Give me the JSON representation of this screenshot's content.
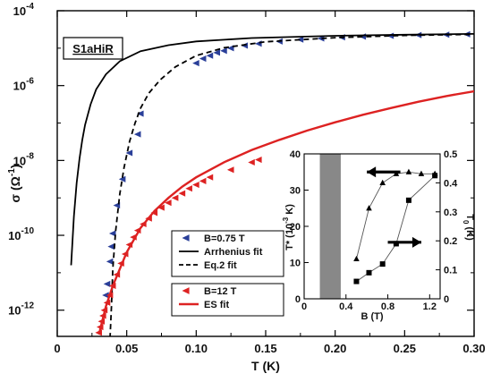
{
  "chart_data": {
    "type": "scatter",
    "sample_label": "S1aHiR",
    "xlabel": "T (K)",
    "ylabel": "σ (Ω",
    "ylabel_exp": "-1",
    "ylabel_close": ")",
    "x_scale": "linear",
    "y_scale": "log",
    "xlim": [
      0,
      0.3
    ],
    "ylim_exp": [
      -12.7,
      -4
    ],
    "x_ticks": [
      {
        "v": 0,
        "label": "0"
      },
      {
        "v": 0.05,
        "label": "0.05"
      },
      {
        "v": 0.1,
        "label": "0.10"
      },
      {
        "v": 0.15,
        "label": "0.15"
      },
      {
        "v": 0.2,
        "label": "0.20"
      },
      {
        "v": 0.25,
        "label": "0.25"
      },
      {
        "v": 0.3,
        "label": "0.30"
      }
    ],
    "y_ticks": [
      {
        "exp": -4,
        "base": "10",
        "sup": "-4"
      },
      {
        "exp": -6,
        "base": "10",
        "sup": "-6"
      },
      {
        "exp": -8,
        "base": "10",
        "sup": "-8"
      },
      {
        "exp": -10,
        "base": "10",
        "sup": "-10"
      },
      {
        "exp": -12,
        "base": "10",
        "sup": "-12"
      }
    ],
    "series": [
      {
        "name": "B=0.75 T",
        "kind": "points",
        "color": "#2a3f99",
        "marker": "triangle-left",
        "points": [
          [
            0.035,
            -11.6
          ],
          [
            0.036,
            -11.3
          ],
          [
            0.038,
            -10.7
          ],
          [
            0.039,
            -10.3
          ],
          [
            0.04,
            -9.95
          ],
          [
            0.043,
            -9.2
          ],
          [
            0.047,
            -8.5
          ],
          [
            0.052,
            -7.8
          ],
          [
            0.058,
            -7.3
          ],
          [
            0.06,
            -6.75
          ],
          [
            0.1,
            -5.4
          ],
          [
            0.105,
            -5.28
          ],
          [
            0.11,
            -5.2
          ],
          [
            0.115,
            -5.12
          ],
          [
            0.12,
            -5.07
          ],
          [
            0.125,
            -5.0
          ],
          [
            0.135,
            -4.93
          ],
          [
            0.145,
            -4.88
          ],
          [
            0.16,
            -4.82
          ],
          [
            0.175,
            -4.77
          ],
          [
            0.19,
            -4.74
          ],
          [
            0.205,
            -4.71
          ],
          [
            0.22,
            -4.69
          ],
          [
            0.24,
            -4.67
          ],
          [
            0.26,
            -4.65
          ],
          [
            0.28,
            -4.64
          ],
          [
            0.295,
            -4.63
          ]
        ]
      },
      {
        "name": "Arrhenius fit",
        "kind": "line",
        "style": "solid",
        "color": "#000000",
        "points": [
          [
            0.01,
            -10.8
          ],
          [
            0.012,
            -9.5
          ],
          [
            0.014,
            -8.6
          ],
          [
            0.016,
            -7.95
          ],
          [
            0.018,
            -7.45
          ],
          [
            0.02,
            -7.05
          ],
          [
            0.024,
            -6.5
          ],
          [
            0.028,
            -6.1
          ],
          [
            0.035,
            -5.7
          ],
          [
            0.045,
            -5.35
          ],
          [
            0.06,
            -5.08
          ],
          [
            0.08,
            -4.92
          ],
          [
            0.1,
            -4.82
          ],
          [
            0.14,
            -4.73
          ],
          [
            0.2,
            -4.67
          ],
          [
            0.25,
            -4.64
          ],
          [
            0.3,
            -4.62
          ]
        ]
      },
      {
        "name": "Eq.2 fit",
        "kind": "line",
        "style": "dashed",
        "color": "#000000",
        "points": [
          [
            0.038,
            -12.75
          ],
          [
            0.039,
            -11.9
          ],
          [
            0.04,
            -10.9
          ],
          [
            0.042,
            -9.9
          ],
          [
            0.045,
            -8.9
          ],
          [
            0.048,
            -8.2
          ],
          [
            0.052,
            -7.5
          ],
          [
            0.056,
            -7.0
          ],
          [
            0.06,
            -6.6
          ],
          [
            0.066,
            -6.2
          ],
          [
            0.074,
            -5.85
          ],
          [
            0.085,
            -5.5
          ],
          [
            0.1,
            -5.2
          ],
          [
            0.12,
            -4.99
          ],
          [
            0.15,
            -4.83
          ],
          [
            0.2,
            -4.72
          ],
          [
            0.25,
            -4.66
          ],
          [
            0.3,
            -4.63
          ]
        ]
      },
      {
        "name": "B=12 T",
        "kind": "points",
        "color": "#dd2222",
        "marker": "triangle-left",
        "points": [
          [
            0.03,
            -12.6
          ],
          [
            0.031,
            -12.45
          ],
          [
            0.032,
            -12.3
          ],
          [
            0.033,
            -12.15
          ],
          [
            0.034,
            -12.0
          ],
          [
            0.036,
            -11.8
          ],
          [
            0.038,
            -11.6
          ],
          [
            0.04,
            -11.35
          ],
          [
            0.043,
            -11.05
          ],
          [
            0.046,
            -10.75
          ],
          [
            0.049,
            -10.5
          ],
          [
            0.052,
            -10.25
          ],
          [
            0.055,
            -10.05
          ],
          [
            0.058,
            -9.87
          ],
          [
            0.062,
            -9.7
          ],
          [
            0.066,
            -9.55
          ],
          [
            0.07,
            -9.4
          ],
          [
            0.075,
            -9.26
          ],
          [
            0.08,
            -9.13
          ],
          [
            0.085,
            -9.0
          ],
          [
            0.09,
            -8.88
          ],
          [
            0.095,
            -8.75
          ],
          [
            0.1,
            -8.65
          ],
          [
            0.105,
            -8.55
          ],
          [
            0.11,
            -8.45
          ],
          [
            0.125,
            -8.25
          ],
          [
            0.14,
            -8.05
          ],
          [
            0.145,
            -7.98
          ]
        ]
      },
      {
        "name": "ES fit",
        "kind": "line",
        "style": "solid",
        "color": "#dd2222",
        "points": [
          [
            0.03,
            -12.65
          ],
          [
            0.035,
            -11.9
          ],
          [
            0.04,
            -11.35
          ],
          [
            0.05,
            -10.45
          ],
          [
            0.06,
            -9.8
          ],
          [
            0.07,
            -9.35
          ],
          [
            0.08,
            -9.0
          ],
          [
            0.09,
            -8.7
          ],
          [
            0.1,
            -8.45
          ],
          [
            0.12,
            -8.05
          ],
          [
            0.14,
            -7.72
          ],
          [
            0.16,
            -7.45
          ],
          [
            0.18,
            -7.2
          ],
          [
            0.2,
            -6.98
          ],
          [
            0.22,
            -6.78
          ],
          [
            0.24,
            -6.6
          ],
          [
            0.26,
            -6.43
          ],
          [
            0.28,
            -6.28
          ],
          [
            0.3,
            -6.15
          ]
        ]
      }
    ],
    "legend": {
      "placement": "lower-center",
      "groups": [
        [
          {
            "label": "B=0.75 T",
            "kind": "marker",
            "color": "#2a3f99"
          },
          {
            "label": "Arrhenius fit",
            "kind": "solid",
            "color": "#000000"
          },
          {
            "label": "Eq.2 fit",
            "kind": "dashed",
            "color": "#000000"
          }
        ],
        [
          {
            "label": "B=12 T",
            "kind": "marker",
            "color": "#dd2222"
          },
          {
            "label": "ES fit",
            "kind": "solid",
            "color": "#dd2222"
          }
        ]
      ]
    },
    "inset": {
      "type": "scatter",
      "xlabel": "B (T)",
      "ylabel_left": "T* (10",
      "ylabel_left_exp": "-3",
      "ylabel_left_close": " K)",
      "ylabel_right": "T",
      "ylabel_right_sub": "0",
      "ylabel_right_close": " (K)",
      "xlim": [
        0,
        1.3
      ],
      "ylim_left": [
        0,
        40
      ],
      "ylim_right": [
        0,
        0.5
      ],
      "x_ticks": [
        "0",
        "0.4",
        "0.8",
        "1.2"
      ],
      "x_tick_values": [
        0,
        0.4,
        0.8,
        1.2
      ],
      "y_left_ticks": [
        "0",
        "10",
        "20",
        "30",
        "40"
      ],
      "y_left_tick_values": [
        0,
        10,
        20,
        30,
        40
      ],
      "y_right_ticks": [
        "0",
        "0.1",
        "0.2",
        "0.3",
        "0.4",
        "0.5"
      ],
      "y_right_tick_values": [
        0,
        0.1,
        0.2,
        0.3,
        0.4,
        0.5
      ],
      "shaded_band": [
        0.15,
        0.35
      ],
      "series": [
        {
          "name": "T*",
          "axis": "left",
          "marker": "triangle-up",
          "x": [
            0.5,
            0.62,
            0.75,
            0.88,
            1.0,
            1.12,
            1.25
          ],
          "y": [
            11,
            25,
            32,
            34.5,
            35,
            34.5,
            34.5
          ]
        },
        {
          "name": "T0",
          "axis": "right",
          "marker": "square",
          "x": [
            0.5,
            0.62,
            0.75,
            0.88,
            1.0,
            1.25
          ],
          "y": [
            0.06,
            0.09,
            0.12,
            0.19,
            0.34,
            0.425
          ]
        }
      ],
      "arrows": [
        {
          "direction": "left",
          "points_to_axis": "left"
        },
        {
          "direction": "right",
          "points_to_axis": "right"
        }
      ]
    }
  }
}
